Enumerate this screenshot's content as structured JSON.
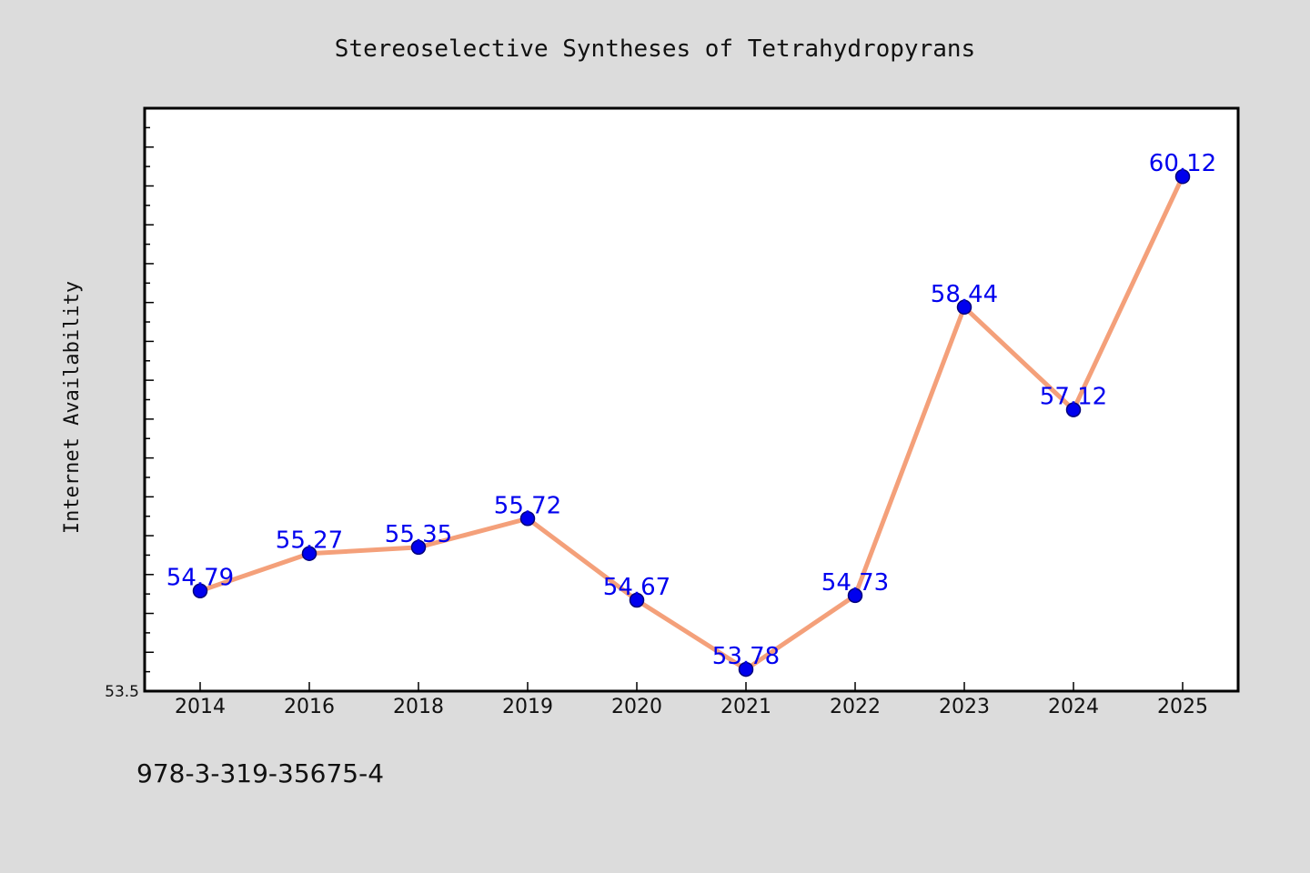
{
  "chart_data": {
    "type": "line",
    "title": "Stereoselective Syntheses of Tetrahydropyrans",
    "ylabel": "Internet Availability",
    "xlabel": "",
    "categories": [
      "2014",
      "2016",
      "2018",
      "2019",
      "2020",
      "2021",
      "2022",
      "2023",
      "2024",
      "2025"
    ],
    "series": [
      {
        "values": [
          54.79,
          55.27,
          55.35,
          55.72,
          54.67,
          53.78,
          54.73,
          58.44,
          57.12,
          60.12
        ],
        "labels": [
          "54.79",
          "55.27",
          "55.35",
          "55.72",
          "54.67",
          "53.78",
          "54.73",
          "58.44",
          "57.12",
          "60.12"
        ]
      }
    ],
    "ylim": [
      53.5,
      61.0
    ],
    "yticks_labeled": [
      "53.5"
    ],
    "grid": false,
    "legend": "none",
    "colors": {
      "line": "#f4a07a",
      "marker_fill": "#0000ee",
      "marker_stroke": "#00007a",
      "data_label": "#0000ee",
      "plot_bg": "#ffffff",
      "page_bg": "#dcdcdc"
    }
  },
  "footer": {
    "isbn": "978-3-319-35675-4"
  }
}
